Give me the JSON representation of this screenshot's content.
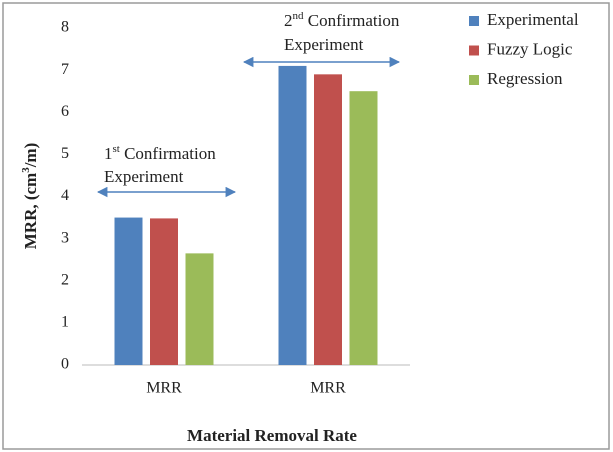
{
  "chart_data": {
    "type": "bar",
    "y_label_parts": [
      "MRR, (cm",
      "3",
      "/m)"
    ],
    "x_label": "Material Removal Rate",
    "categories": [
      "MRR",
      "MRR"
    ],
    "series": [
      {
        "name": "Experimental",
        "color": "#4f81bd",
        "values": [
          3.5,
          7.1
        ]
      },
      {
        "name": "Fuzzy Logic",
        "color": "#c0504d",
        "values": [
          3.48,
          6.9
        ]
      },
      {
        "name": "Regression",
        "color": "#9bbb59",
        "values": [
          2.65,
          6.5
        ]
      }
    ],
    "ylim": [
      0,
      8
    ],
    "yticks": [
      0,
      1,
      2,
      3,
      4,
      5,
      6,
      7,
      8
    ],
    "legend": "right",
    "annotations": [
      {
        "number": "1",
        "suffix": "st",
        "text": " Confirmation",
        "line2": "Experiment"
      },
      {
        "number": "2",
        "suffix": "nd",
        "text": " Confirmation",
        "line2": "Experiment"
      }
    ]
  }
}
